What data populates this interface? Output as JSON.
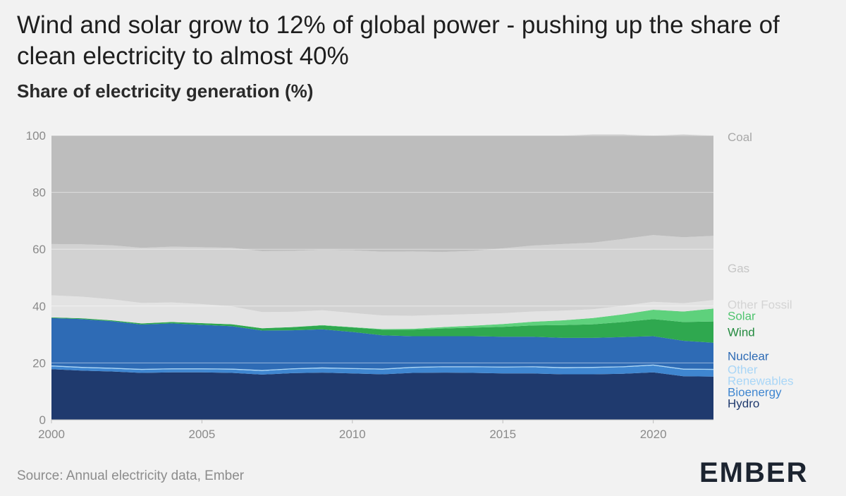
{
  "title": "Wind and solar grow to 12% of global power - pushing up the share of clean electricity to almost 40%",
  "subtitle": "Share of electricity generation (%)",
  "source": "Source: Annual electricity data, Ember",
  "logo": "EMBER",
  "colors": {
    "Hydro": "#1f3a6e",
    "Bioenergy": "#3f86d0",
    "Other Renewables": "#a9d6f7",
    "Nuclear": "#2e6bb5",
    "Wind": "#2fa84f",
    "Solar": "#5ed17c",
    "Other Fossil": "#e3e3e3",
    "Gas": "#d2d2d2",
    "Coal": "#bdbdbd"
  },
  "label_colors": {
    "Hydro": "#1f3a6e",
    "Bioenergy": "#3f86d0",
    "Other Renewables": "#a9d6f7",
    "Nuclear": "#2e6bb5",
    "Wind": "#238a3f",
    "Solar": "#4fc46f",
    "Other Fossil": "#d4d4d4",
    "Gas": "#c6c6c6",
    "Coal": "#a8a8a8"
  },
  "chart_data": {
    "type": "area",
    "stacked": true,
    "title": "Wind and solar grow to 12% of global power - pushing up the share of clean electricity to almost 40%",
    "subtitle": "Share of electricity generation (%)",
    "xlabel": "",
    "ylabel": "",
    "xlim": [
      2000,
      2022
    ],
    "ylim": [
      0,
      100
    ],
    "yticks": [
      "0",
      "20",
      "40",
      "60",
      "80",
      "100"
    ],
    "xticks": [
      "2000",
      "2005",
      "2010",
      "2015",
      "2020"
    ],
    "x": [
      2000,
      2001,
      2002,
      2003,
      2004,
      2005,
      2006,
      2007,
      2008,
      2009,
      2010,
      2011,
      2012,
      2013,
      2014,
      2015,
      2016,
      2017,
      2018,
      2019,
      2020,
      2021,
      2022
    ],
    "series": [
      {
        "name": "Hydro",
        "values": [
          17.8,
          17.3,
          17.0,
          16.5,
          16.7,
          16.7,
          16.5,
          15.9,
          16.4,
          16.6,
          16.3,
          16.0,
          16.5,
          16.6,
          16.5,
          16.3,
          16.3,
          16.0,
          16.0,
          16.2,
          16.7,
          15.3,
          15.2
        ]
      },
      {
        "name": "Bioenergy",
        "values": [
          1.0,
          1.0,
          1.0,
          1.1,
          1.1,
          1.1,
          1.2,
          1.3,
          1.4,
          1.5,
          1.6,
          1.7,
          1.8,
          1.9,
          2.0,
          2.1,
          2.2,
          2.2,
          2.3,
          2.3,
          2.4,
          2.4,
          2.4
        ]
      },
      {
        "name": "Other Renewables",
        "values": [
          0.3,
          0.3,
          0.3,
          0.3,
          0.3,
          0.3,
          0.3,
          0.3,
          0.3,
          0.3,
          0.3,
          0.3,
          0.3,
          0.3,
          0.3,
          0.3,
          0.3,
          0.3,
          0.3,
          0.3,
          0.3,
          0.3,
          0.3
        ]
      },
      {
        "name": "Nuclear",
        "values": [
          16.7,
          16.8,
          16.4,
          15.6,
          15.8,
          15.3,
          14.9,
          13.9,
          13.4,
          13.4,
          12.7,
          11.7,
          10.8,
          10.6,
          10.6,
          10.5,
          10.4,
          10.3,
          10.2,
          10.3,
          10.0,
          9.8,
          9.2
        ]
      },
      {
        "name": "Wind",
        "values": [
          0.2,
          0.3,
          0.3,
          0.4,
          0.5,
          0.6,
          0.7,
          0.8,
          1.1,
          1.4,
          1.6,
          2.0,
          2.3,
          2.7,
          3.0,
          3.5,
          4.0,
          4.5,
          4.8,
          5.3,
          6.0,
          6.6,
          7.5
        ]
      },
      {
        "name": "Solar",
        "values": [
          0.0,
          0.0,
          0.0,
          0.0,
          0.0,
          0.0,
          0.0,
          0.0,
          0.0,
          0.1,
          0.1,
          0.2,
          0.3,
          0.5,
          0.7,
          1.0,
          1.3,
          1.7,
          2.2,
          2.7,
          3.3,
          3.7,
          4.5
        ]
      },
      {
        "name": "Other Fossil",
        "values": [
          7.8,
          7.6,
          7.4,
          7.2,
          6.9,
          6.7,
          6.3,
          5.7,
          5.4,
          5.2,
          5.0,
          4.8,
          4.6,
          4.3,
          4.1,
          3.8,
          3.6,
          3.4,
          3.1,
          3.0,
          2.8,
          2.9,
          3.0
        ]
      },
      {
        "name": "Gas",
        "values": [
          18.0,
          18.4,
          19.0,
          19.4,
          19.6,
          20.0,
          20.6,
          21.4,
          21.4,
          21.3,
          22.0,
          22.4,
          22.6,
          22.1,
          22.2,
          22.8,
          23.2,
          23.4,
          23.4,
          23.5,
          23.5,
          23.2,
          22.6
        ]
      },
      {
        "name": "Coal",
        "values": [
          38.2,
          38.3,
          38.6,
          39.5,
          39.1,
          39.3,
          39.5,
          40.7,
          40.6,
          40.2,
          40.4,
          40.9,
          40.8,
          41.0,
          40.6,
          39.7,
          38.7,
          38.2,
          38.0,
          36.7,
          35.0,
          36.1,
          35.3
        ]
      }
    ],
    "end_labels": [
      {
        "series": "Coal",
        "text": "Coal"
      },
      {
        "series": "Gas",
        "text": "Gas"
      },
      {
        "series": "Other Fossil",
        "text": "Other Fossil"
      },
      {
        "series": "Solar",
        "text": "Solar"
      },
      {
        "series": "Wind",
        "text": "Wind"
      },
      {
        "series": "Nuclear",
        "text": "Nuclear"
      },
      {
        "series": "Other Renewables",
        "text": "Other"
      },
      {
        "series": "Other Renewables",
        "text": "Renewables"
      },
      {
        "series": "Bioenergy",
        "text": "Bioenergy"
      },
      {
        "series": "Hydro",
        "text": "Hydro"
      }
    ]
  }
}
